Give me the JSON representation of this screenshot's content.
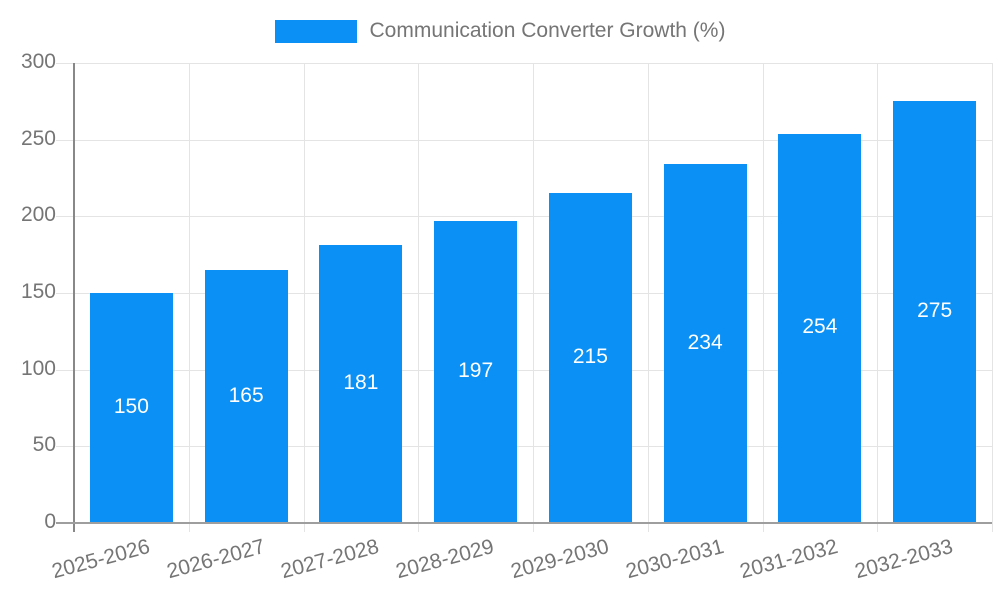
{
  "chart_data": {
    "type": "bar",
    "title": "Communication Converter Growth (%)",
    "categories": [
      "2025-2026",
      "2026-2027",
      "2027-2028",
      "2028-2029",
      "2029-2030",
      "2030-2031",
      "2031-2032",
      "2032-2033"
    ],
    "values": [
      150,
      165,
      181,
      197,
      215,
      234,
      254,
      275
    ],
    "xlabel": "",
    "ylabel": "",
    "ylim": [
      0,
      300
    ],
    "yticks": [
      0,
      50,
      100,
      150,
      200,
      250,
      300
    ],
    "grid": true,
    "legend_position": "top-center",
    "colors": {
      "bar": "#0b90f6",
      "value_label": "#ffffff",
      "axis_text": "#757575",
      "grid": "#e4e4e4",
      "y_axis_line": "#888888",
      "x_axis_line": "#9e9e9e",
      "background": "#ffffff"
    }
  }
}
